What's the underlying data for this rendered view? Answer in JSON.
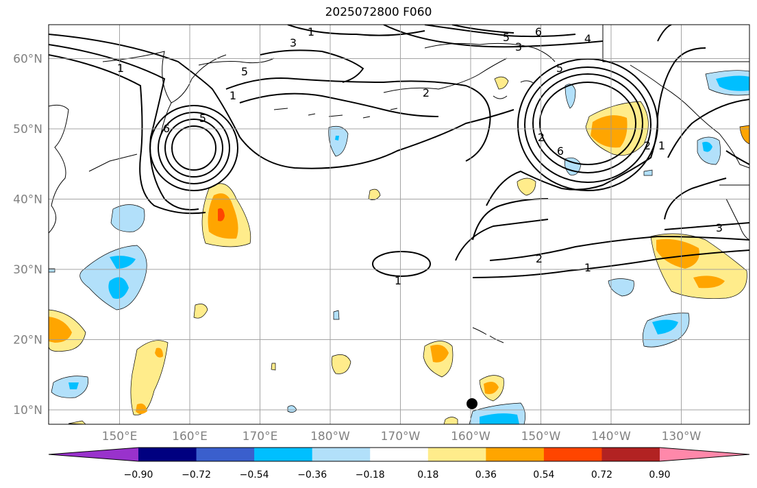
{
  "title": "2025072800 F060",
  "map": {
    "lon_range_deg_east": [
      140,
      241
    ],
    "lat_range": [
      8,
      65
    ],
    "lon_ticks": [
      "150°E",
      "160°E",
      "170°E",
      "180°W",
      "170°W",
      "160°W",
      "150°W",
      "140°W",
      "130°W"
    ],
    "lat_ticks": [
      "10°N",
      "20°N",
      "30°N",
      "40°N",
      "50°N",
      "60°N"
    ],
    "grid": true,
    "marker": {
      "name": "point-marker",
      "lon_deg_east": 201,
      "lat": 11
    }
  },
  "contours": {
    "color": "#000000",
    "labels": [
      "1",
      "3",
      "5",
      "6",
      "4",
      "5",
      "3",
      "2",
      "1",
      "5",
      "6",
      "2",
      "1",
      "1",
      "2",
      "1",
      "3",
      "5",
      "6",
      "2",
      "1"
    ]
  },
  "colorbar": {
    "boundaries": [
      "−0.90",
      "−0.72",
      "−0.54",
      "−0.36",
      "−0.18",
      "0.18",
      "0.36",
      "0.54",
      "0.72",
      "0.90"
    ],
    "colors": [
      "#9932CC",
      "#000080",
      "#3A5FCD",
      "#00BFFF",
      "#B2E0FA",
      "#FFFFFF",
      "#FFEC8B",
      "#FFA500",
      "#FF4500",
      "#B22222",
      "#FF88AA"
    ],
    "extend": "both"
  }
}
